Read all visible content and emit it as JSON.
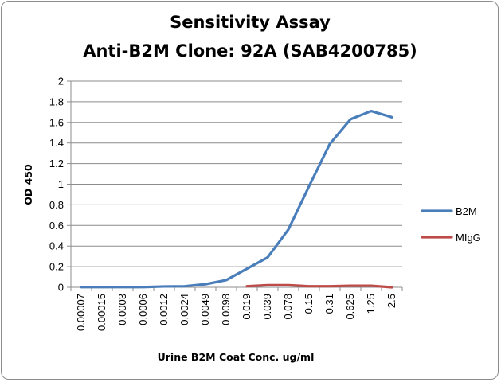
{
  "chart_data": {
    "type": "line",
    "title": "Sensitivity Assay",
    "subtitle": "Anti-B2M Clone: 92A (SAB4200785)",
    "xlabel": "Urine B2M Coat Conc. ug/ml",
    "ylabel": "OD 450",
    "categories": [
      "0.00007",
      "0.00015",
      "0.0003",
      "0.0006",
      "0.0012",
      "0.0024",
      "0.0049",
      "0.0098",
      "0.019",
      "0.039",
      "0.078",
      "0.15",
      "0.31",
      "0.625",
      "1.25",
      "2.5"
    ],
    "ylim": [
      0,
      2
    ],
    "yticks": [
      "0",
      "0.2",
      "0.4",
      "0.6",
      "0.8",
      "1",
      "1.2",
      "1.4",
      "1.6",
      "1.8",
      "2"
    ],
    "grid": true,
    "legend_position": "right",
    "series": [
      {
        "name": "B2M",
        "color": "#4a7ebb",
        "values": [
          0.002,
          0.002,
          0.002,
          0.002,
          0.008,
          0.01,
          0.03,
          0.07,
          0.18,
          0.29,
          0.56,
          0.98,
          1.39,
          1.63,
          1.71,
          1.65
        ]
      },
      {
        "name": "MIgG",
        "color": "#be4b48",
        "values": [
          null,
          null,
          null,
          null,
          null,
          null,
          null,
          null,
          0.01,
          0.02,
          0.02,
          0.01,
          0.01,
          0.015,
          0.015,
          0.0
        ]
      }
    ]
  }
}
